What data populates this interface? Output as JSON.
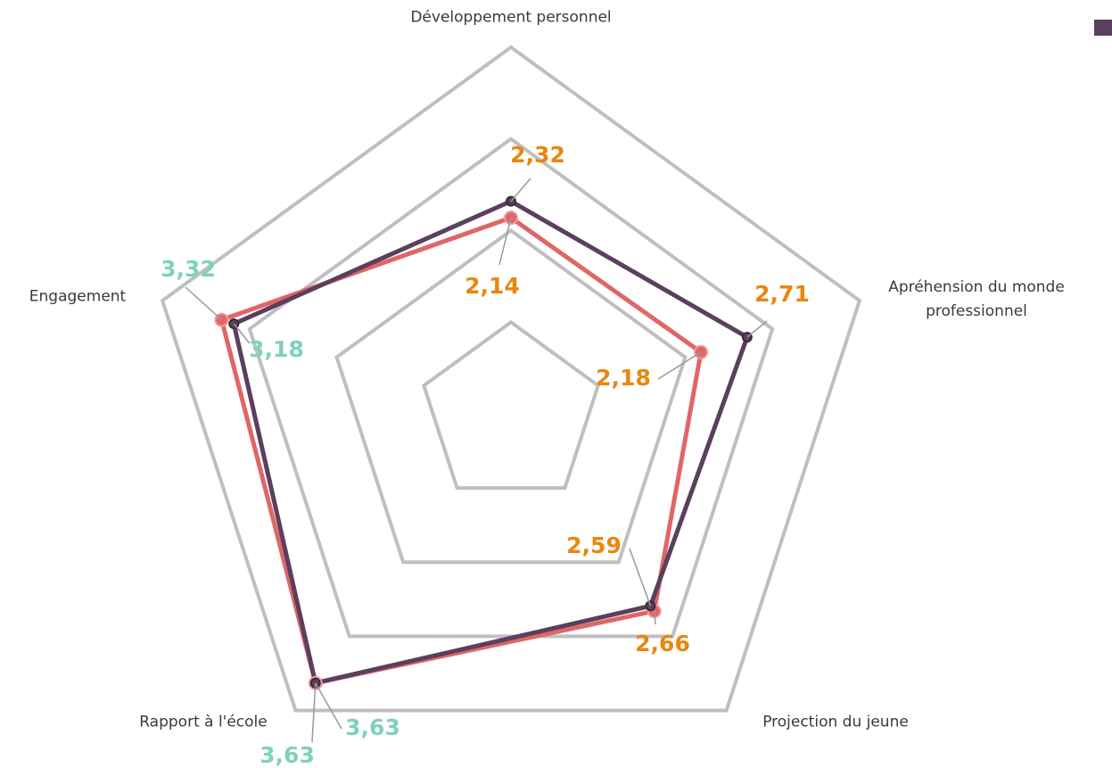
{
  "chart_data": {
    "type": "radar",
    "categories": [
      "Développement personnel",
      "Apréhension du monde professionnel",
      "Projection du jeune",
      "Rapport à l'école",
      "Engagement"
    ],
    "series": [
      {
        "color": "#5b3f5e",
        "values": [
          2.32,
          2.71,
          2.59,
          3.63,
          3.18
        ],
        "value_labels": [
          "2,32",
          "2,71",
          "2,59",
          "3,63",
          "3,18"
        ]
      },
      {
        "color": "#e06666",
        "values": [
          2.14,
          2.18,
          2.66,
          3.63,
          3.32
        ],
        "value_labels": [
          "2,14",
          "2,18",
          "2,66",
          "3,63",
          "3,32"
        ]
      }
    ],
    "label_colors": [
      "#e8870e",
      "#e8870e",
      "#e8870e",
      "#7fd1bd",
      "#7fd1bd"
    ],
    "ylim": [
      0,
      4
    ],
    "yticks": [
      1,
      2,
      3,
      4
    ],
    "grid": true
  }
}
